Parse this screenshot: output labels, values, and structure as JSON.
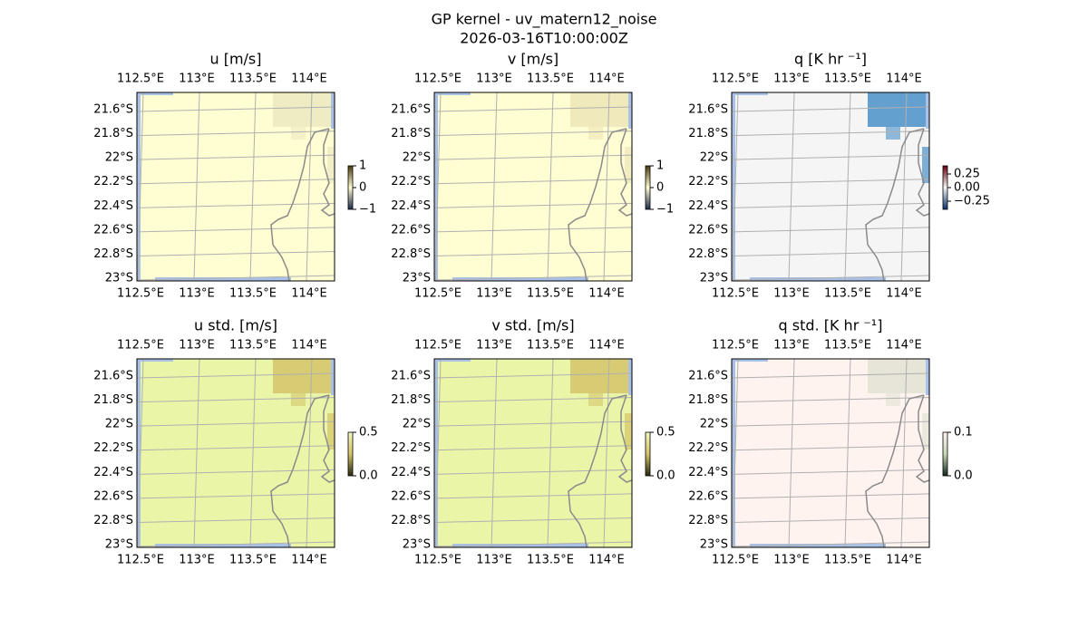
{
  "figure": {
    "title": "GP kernel - uv_matern12_noise",
    "subtitle": "2026-03-16T10:00:00Z",
    "lon_ticks": [
      {
        "value": 112.5,
        "label": "112.5°E"
      },
      {
        "value": 113,
        "label": "113°E"
      },
      {
        "value": 113.5,
        "label": "113.5°E"
      },
      {
        "value": 114,
        "label": "114°E"
      }
    ],
    "lat_ticks": [
      {
        "value": -21.6,
        "label": "21.6°S"
      },
      {
        "value": -21.8,
        "label": "21.8°S"
      },
      {
        "value": -22,
        "label": "22°S"
      },
      {
        "value": -22.2,
        "label": "22.2°S"
      },
      {
        "value": -22.4,
        "label": "22.4°S"
      },
      {
        "value": -22.6,
        "label": "22.6°S"
      },
      {
        "value": -22.8,
        "label": "22.8°S"
      },
      {
        "value": -23,
        "label": "23°S"
      }
    ],
    "panels": [
      {
        "title": "u [m/s]",
        "field_color": "#fffdd2",
        "patch_color": "#ece8c0",
        "colorbar": {
          "lim": [
            -1,
            1
          ],
          "ticks": [
            {
              "value": -1,
              "label": "−1"
            },
            0,
            1
          ],
          "colors": [
            "#1a2a4a",
            "#fffdd2",
            "#4a3a10"
          ]
        }
      },
      {
        "title": "v [m/s]",
        "field_color": "#fffdd2",
        "patch_color": "#ece5b8",
        "colorbar": {
          "lim": [
            -1,
            1
          ],
          "ticks": [
            {
              "value": -1,
              "label": "−1"
            },
            0,
            1
          ],
          "colors": [
            "#1a2a4a",
            "#fffdd2",
            "#4a3a10"
          ]
        }
      },
      {
        "title": "q [K hr ⁻¹]",
        "field_color": "#f5f5f5",
        "patch_color": "#4a90c8",
        "colorbar": {
          "lim": [
            -0.4,
            0.4
          ],
          "ticks": [
            {
              "value": -0.25,
              "label": "−0.25"
            },
            {
              "value": 0,
              "label": "0.00"
            },
            0.25
          ],
          "colors": [
            "#08306b",
            "#f5f5f5",
            "#67000d"
          ]
        }
      },
      {
        "title": "u std. [m/s]",
        "field_color": "#eaf5a8",
        "patch_color": "#d4c46a",
        "colorbar": {
          "lim": [
            0,
            0.5
          ],
          "ticks": [
            {
              "value": 0,
              "label": "0.0"
            },
            0.5
          ],
          "colors": [
            "#2a2a10",
            "#d4c46a",
            "#f0f8c0"
          ]
        }
      },
      {
        "title": "v std. [m/s]",
        "field_color": "#eaf5a8",
        "patch_color": "#d4c46a",
        "colorbar": {
          "lim": [
            0,
            0.5
          ],
          "ticks": [
            {
              "value": 0,
              "label": "0.0"
            },
            0.5
          ],
          "colors": [
            "#2a2a10",
            "#d4c46a",
            "#f0f8c0"
          ]
        }
      },
      {
        "title": "q std. [K hr ⁻¹]",
        "field_color": "#fff3f0",
        "patch_color": "#e2e2d4",
        "colorbar": {
          "lim": [
            0,
            0.1
          ],
          "ticks": [
            {
              "value": 0,
              "label": "0.0"
            },
            0.1
          ],
          "colors": [
            "#102a20",
            "#c8d8b8",
            "#fff3f0"
          ]
        }
      }
    ]
  }
}
